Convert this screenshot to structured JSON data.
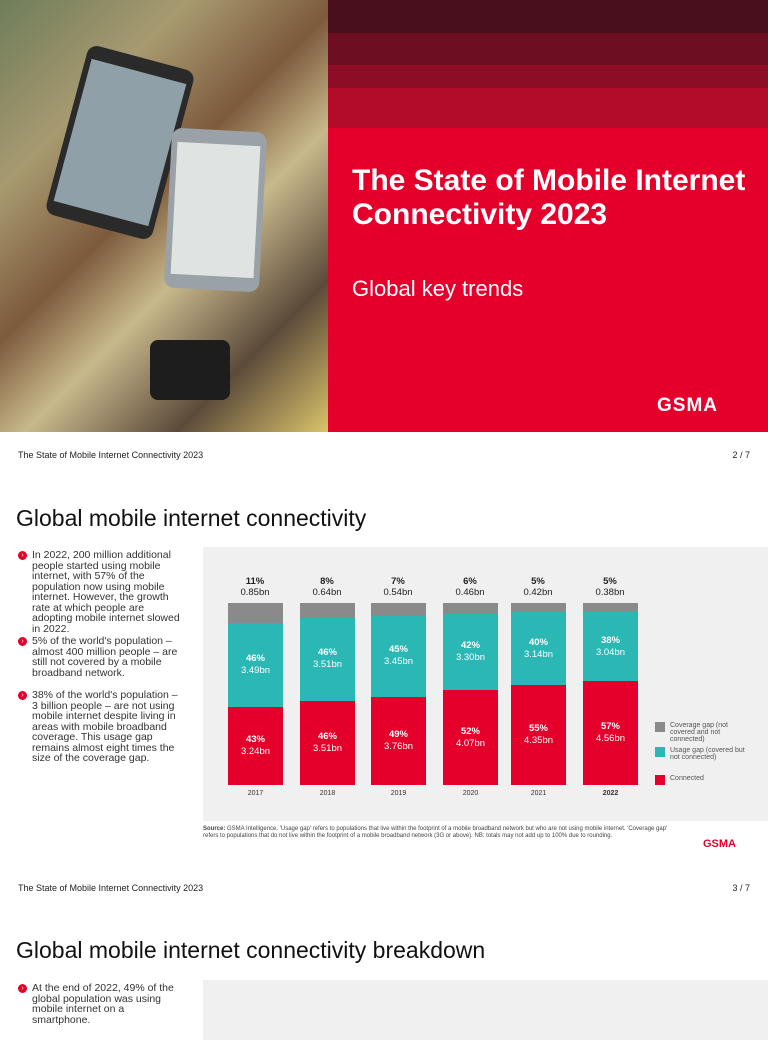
{
  "cover": {
    "title": "The State of Mobile Internet Connectivity 2023",
    "subtitle": "Global key trends",
    "logo": "GSMA"
  },
  "page2": {
    "header": "The State of Mobile Internet Connectivity 2023",
    "page": "2 / 7",
    "heading": "Global mobile internet connectivity",
    "bullets": [
      "In 2022, 200 million additional people started using mobile internet, with 57% of the population now using mobile internet. However, the growth rate at which people are adopting mobile internet slowed in 2022.",
      "5% of the world's population – almost 400 million people – are still not covered by a mobile broadband network.",
      "38% of the world's population – 3 billion people – are not using mobile internet despite living in areas with mobile broadband coverage. This usage gap remains almost eight times the size of the coverage gap."
    ],
    "source_label": "Source:",
    "source": "GSMA Intelligence. 'Usage gap' refers to populations that live within the footprint of a mobile broadband network but who are not using mobile internet. 'Coverage gap' refers to populations that do not live within the footprint of a mobile broadband network (3G or above). NB: totals may not add up to 100% due to rounding.",
    "logo": "GSMA"
  },
  "chart_data": {
    "type": "bar",
    "stacked": true,
    "categories": [
      "2017",
      "2018",
      "2019",
      "2020",
      "2021",
      "2022"
    ],
    "series": [
      {
        "name": "Connected",
        "color": "#e4002b",
        "percent": [
          43,
          46,
          49,
          52,
          55,
          57
        ],
        "labels": [
          "3.24bn",
          "3.51bn",
          "3.76bn",
          "4.07bn",
          "4.35bn",
          "4.56bn"
        ]
      },
      {
        "name": "Usage gap (covered but not connected)",
        "color": "#2bb8b5",
        "percent": [
          46,
          46,
          45,
          42,
          40,
          38
        ],
        "labels": [
          "3.49bn",
          "3.51bn",
          "3.45bn",
          "3.30bn",
          "3.14bn",
          "3.04bn"
        ]
      },
      {
        "name": "Coverage gap (not covered and not connected)",
        "color": "#8a8a8a",
        "percent": [
          11,
          8,
          7,
          6,
          5,
          5
        ],
        "labels": [
          "0.85bn",
          "0.64bn",
          "0.54bn",
          "0.46bn",
          "0.42bn",
          "0.38bn"
        ]
      }
    ],
    "legend_position": "right"
  },
  "page3": {
    "header": "The State of Mobile Internet Connectivity 2023",
    "page": "3 / 7",
    "heading": "Global mobile internet connectivity breakdown",
    "bullets": [
      "At the end of 2022, 49% of the global population was using mobile internet on a smartphone."
    ]
  }
}
